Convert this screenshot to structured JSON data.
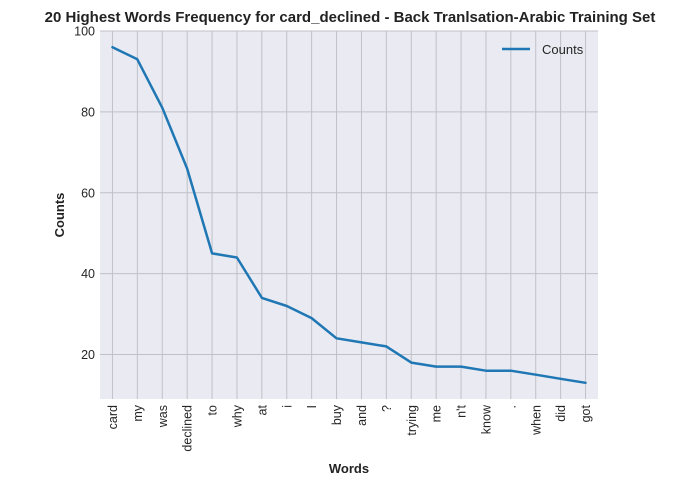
{
  "chart_data": {
    "type": "line",
    "title": "20 Highest Words Frequency for card_declined - Back Tranlsation-Arabic Training Set",
    "xlabel": "Words",
    "ylabel": "Counts",
    "categories": [
      "card",
      "my",
      "was",
      "declined",
      "to",
      "why",
      "at",
      "i",
      "I",
      "buy",
      "and",
      "?",
      "trying",
      "me",
      "n't",
      "know",
      ".",
      "when",
      "did",
      "got"
    ],
    "series": [
      {
        "name": "Counts",
        "color": "#1f77b4",
        "values": [
          96,
          93,
          81,
          66,
          45,
          44,
          34,
          32,
          29,
          24,
          23,
          22,
          18,
          17,
          17,
          16,
          16,
          15,
          14,
          13
        ]
      }
    ],
    "ylim": [
      9,
      100
    ],
    "yticks": [
      20,
      40,
      60,
      80,
      100
    ],
    "grid": true,
    "legend_position": "top-right",
    "background": "#eaeaf2",
    "grid_color": "#c0c0c8"
  }
}
